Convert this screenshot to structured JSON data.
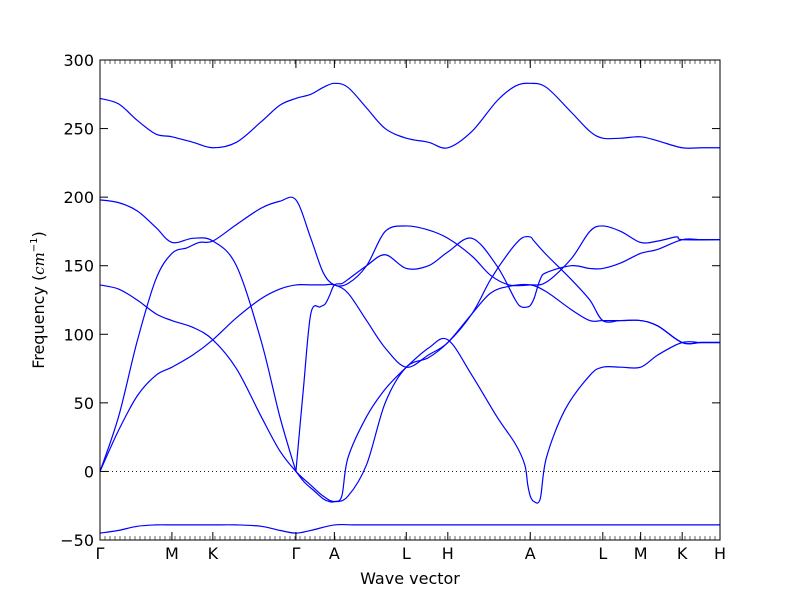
{
  "chart_data": {
    "type": "line",
    "xlabel": "Wave vector",
    "ylabel": {
      "main": "Frequency (",
      "unit": "cm",
      "exponent": "−1",
      "close": ")"
    },
    "ylim": [
      -50,
      300
    ],
    "yticks": [
      -50,
      0,
      50,
      100,
      150,
      200,
      250,
      300
    ],
    "xlim": [
      0,
      1
    ],
    "xticks": [
      {
        "label": "Γ",
        "x": 0.0
      },
      {
        "label": "M",
        "x": 0.116
      },
      {
        "label": "K",
        "x": 0.182
      },
      {
        "label": "Γ",
        "x": 0.316
      },
      {
        "label": "A",
        "x": 0.378
      },
      {
        "label": "L",
        "x": 0.494
      },
      {
        "label": "H",
        "x": 0.561
      },
      {
        "label": "A",
        "x": 0.694
      },
      {
        "label": "L",
        "x": 0.811
      },
      {
        "label": "M",
        "x": 0.872
      },
      {
        "label": "K",
        "x": 0.939
      },
      {
        "label": "H",
        "x": 1.0
      }
    ],
    "zero_line": true,
    "line_color": "#0000ff",
    "series": [
      {
        "x": [
          0,
          0.03,
          0.06,
          0.09,
          0.116,
          0.15,
          0.182,
          0.22,
          0.26,
          0.29,
          0.316,
          0.34,
          0.378,
          0.41,
          0.45,
          0.494,
          0.53,
          0.561,
          0.6,
          0.65,
          0.694,
          0.73,
          0.77,
          0.811,
          0.84,
          0.872,
          0.9,
          0.939,
          0.97,
          1.0
        ],
        "values": [
          -45,
          -43,
          -40,
          -39,
          -39,
          -39,
          -39,
          -39,
          -40,
          -43,
          -45,
          -43,
          -39,
          -39,
          -39,
          -39,
          -39,
          -39,
          -39,
          -39,
          -39,
          -39,
          -39,
          -39,
          -39,
          -39,
          -39,
          -39,
          -39,
          -39
        ]
      },
      {
        "x": [
          0,
          0.03,
          0.06,
          0.09,
          0.116,
          0.15,
          0.182,
          0.22,
          0.26,
          0.29,
          0.316,
          0.34,
          0.36,
          0.378,
          0.4,
          0.43,
          0.46,
          0.494,
          0.53,
          0.561,
          0.6,
          0.64,
          0.67,
          0.694,
          0.72,
          0.76,
          0.79,
          0.811,
          0.84,
          0.872,
          0.9,
          0.939,
          0.97,
          1.0
        ],
        "values": [
          272,
          268,
          256,
          246,
          244,
          240,
          236,
          240,
          255,
          267,
          272,
          275,
          280,
          283,
          280,
          265,
          250,
          243,
          240,
          236,
          248,
          270,
          281,
          283,
          280,
          262,
          248,
          243,
          243,
          244,
          241,
          236,
          236,
          236
        ]
      },
      {
        "x": [
          0,
          0.03,
          0.06,
          0.09,
          0.116,
          0.15,
          0.182,
          0.22,
          0.26,
          0.29,
          0.316
        ],
        "values": [
          198,
          196,
          190,
          178,
          167,
          170,
          168,
          150,
          95,
          40,
          0
        ]
      },
      {
        "x": [
          0,
          0.03,
          0.06,
          0.09,
          0.116,
          0.14,
          0.16,
          0.182,
          0.22,
          0.26,
          0.29,
          0.316,
          0.34,
          0.36,
          0.378,
          0.4,
          0.43,
          0.46,
          0.494,
          0.53,
          0.561,
          0.6,
          0.63,
          0.66,
          0.694,
          0.72,
          0.76,
          0.79,
          0.811,
          0.84,
          0.872,
          0.9,
          0.93,
          0.939,
          1.0
        ],
        "values": [
          0,
          40,
          95,
          140,
          159,
          163,
          167,
          168,
          180,
          192,
          197,
          198,
          170,
          145,
          136,
          137,
          150,
          175,
          179,
          176,
          170,
          157,
          143,
          136,
          136,
          138,
          155,
          175,
          179,
          175,
          167,
          168,
          171,
          169,
          169
        ]
      },
      {
        "x": [
          0,
          0.03,
          0.06,
          0.09,
          0.116,
          0.15,
          0.182,
          0.22,
          0.26,
          0.29,
          0.316,
          0.34,
          0.36,
          0.378,
          0.4,
          0.43,
          0.46,
          0.494,
          0.53,
          0.561,
          0.6,
          0.63,
          0.66,
          0.694,
          0.72,
          0.76,
          0.79,
          0.811,
          0.84,
          0.872,
          0.9,
          0.939,
          0.97,
          1.0
        ],
        "values": [
          136,
          133,
          125,
          115,
          110,
          105,
          96,
          75,
          40,
          15,
          0,
          -10,
          -18,
          -22,
          -18,
          5,
          50,
          76,
          83,
          94,
          115,
          130,
          135,
          136,
          131,
          118,
          110,
          110,
          110,
          110,
          106,
          94,
          94,
          94
        ]
      },
      {
        "x": [
          0,
          0.03,
          0.06,
          0.09,
          0.116,
          0.15,
          0.182,
          0.22,
          0.26,
          0.29,
          0.316,
          0.34,
          0.36,
          0.378,
          0.4,
          0.43,
          0.46,
          0.494,
          0.53,
          0.561,
          0.6,
          0.63,
          0.66,
          0.68,
          0.694,
          0.7,
          0.72,
          0.76,
          0.79,
          0.811,
          0.84,
          0.872,
          0.9,
          0.939,
          0.97,
          1.0
        ],
        "values": [
          0,
          30,
          55,
          70,
          76,
          85,
          96,
          112,
          126,
          133,
          136,
          136,
          136,
          136,
          130,
          110,
          90,
          76,
          85,
          94,
          115,
          140,
          160,
          170,
          171,
          168,
          158,
          140,
          125,
          110,
          110,
          110,
          106,
          94,
          94,
          94
        ]
      },
      {
        "x": [
          0.316,
          0.328,
          0.34,
          0.355,
          0.363,
          0.37,
          0.378,
          0.39,
          0.4,
          0.43,
          0.46,
          0.494,
          0.53,
          0.561,
          0.6,
          0.64,
          0.67,
          0.68,
          0.69,
          0.694,
          0.7,
          0.71,
          0.72,
          0.76,
          0.79,
          0.811,
          0.84,
          0.872,
          0.9,
          0.939,
          0.97,
          1.0
        ],
        "values": [
          0,
          60,
          115,
          120,
          122,
          128,
          136,
          137,
          140,
          150,
          158,
          148,
          150,
          160,
          170,
          150,
          125,
          120,
          120,
          121,
          126,
          140,
          145,
          150,
          148,
          148,
          152,
          159,
          162,
          169,
          169,
          169
        ]
      },
      {
        "x": [
          0.316,
          0.33,
          0.345,
          0.36,
          0.37,
          0.378,
          0.39,
          0.4,
          0.43,
          0.46,
          0.494,
          0.53,
          0.561,
          0.6,
          0.64,
          0.67,
          0.685,
          0.69,
          0.694,
          0.7,
          0.71,
          0.72,
          0.75,
          0.79,
          0.811,
          0.84,
          0.872,
          0.9,
          0.939,
          0.97,
          1.0
        ],
        "values": [
          0,
          -8,
          -14,
          -20,
          -22,
          -22,
          -18,
          10,
          40,
          60,
          76,
          90,
          96,
          70,
          40,
          20,
          5,
          -10,
          -18,
          -22,
          -20,
          10,
          45,
          70,
          76,
          76,
          76,
          85,
          94,
          94,
          94
        ]
      }
    ]
  }
}
